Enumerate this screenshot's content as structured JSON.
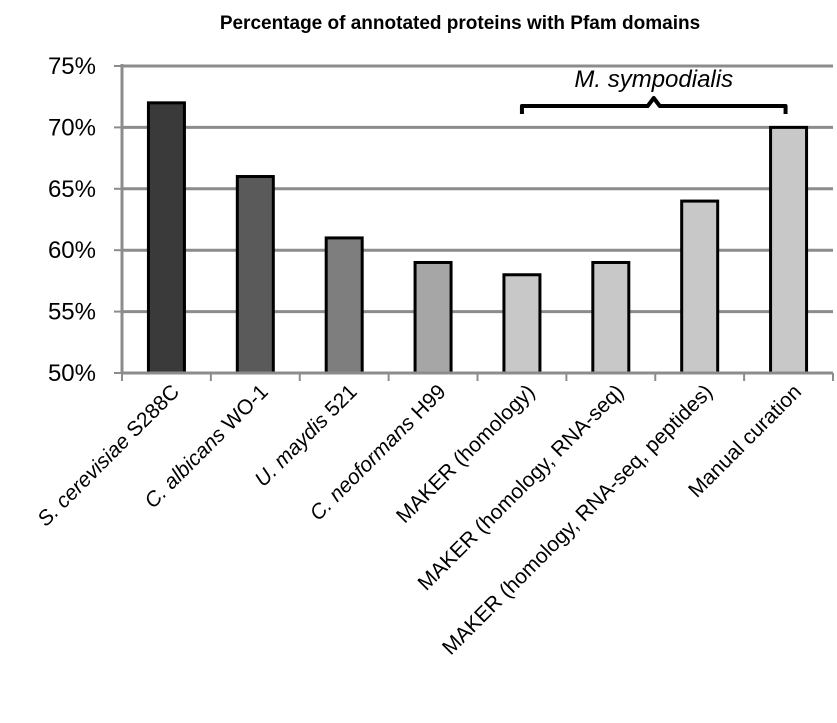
{
  "chart_data": {
    "type": "bar",
    "title": "Percentage of annotated proteins with Pfam domains",
    "xlabel": "",
    "ylabel": "",
    "ylim": [
      50,
      75
    ],
    "y_ticks": [
      "50%",
      "55%",
      "60%",
      "65%",
      "70%",
      "75%"
    ],
    "grid": true,
    "categories": [
      [
        {
          "text": "S. cerevisiae",
          "italic": true
        },
        {
          "text": " S288C",
          "italic": false
        }
      ],
      [
        {
          "text": "C. albicans",
          "italic": true
        },
        {
          "text": " WO-1",
          "italic": false
        }
      ],
      [
        {
          "text": "U. maydis",
          "italic": true
        },
        {
          "text": " 521",
          "italic": false
        }
      ],
      [
        {
          "text": "C. neoformans",
          "italic": true
        },
        {
          "text": " H99",
          "italic": false
        }
      ],
      [
        {
          "text": "MAKER (homology)",
          "italic": false
        }
      ],
      [
        {
          "text": "MAKER (homology, RNA-seq)",
          "italic": false
        }
      ],
      [
        {
          "text": "MAKER (homology, RNA-seq, peptides)",
          "italic": false
        }
      ],
      [
        {
          "text": "Manual curation",
          "italic": false
        }
      ]
    ],
    "values": [
      72,
      66,
      61,
      59,
      58,
      59,
      64,
      70
    ],
    "bar_colors": [
      "#3a3a3a",
      "#5a5a5a",
      "#7e7e7e",
      "#a6a6a6",
      "#c8c8c8",
      "#c8c8c8",
      "#c8c8c8",
      "#c8c8c8"
    ],
    "annotation": {
      "text": "M. sympodialis",
      "from_index": 4,
      "to_index": 7
    }
  }
}
